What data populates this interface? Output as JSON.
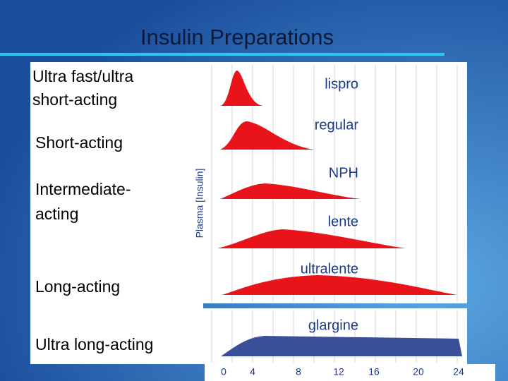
{
  "title": "Insulin Preparations",
  "categories": [
    [
      "Ultra fast/ultra",
      "short-acting"
    ],
    [
      "Short-acting"
    ],
    [
      "Intermediate-",
      "acting"
    ],
    [
      "Long-acting"
    ],
    [
      "Ultra long-acting"
    ]
  ],
  "y_axis_label": "Plasma [Insulin]",
  "curves": [
    "lispro",
    "regular",
    "NPH",
    "lente",
    "ultralente",
    "glargine"
  ],
  "x_ticks": [
    0,
    4,
    8,
    12,
    16,
    20,
    24
  ]
}
